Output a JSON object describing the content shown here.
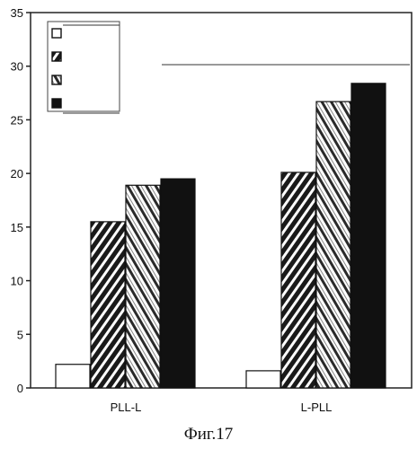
{
  "chart_data": {
    "type": "bar",
    "categories": [
      "PLL-L",
      "L-PLL"
    ],
    "series": [
      {
        "values": [
          2.2,
          1.6
        ],
        "fill": "white"
      },
      {
        "values": [
          15.5,
          20.1
        ],
        "fill": "stripe-dense"
      },
      {
        "values": [
          18.9,
          26.7
        ],
        "fill": "stripe-light"
      },
      {
        "values": [
          19.5,
          28.4
        ],
        "fill": "solid"
      }
    ],
    "yticks": [
      0,
      5,
      10,
      15,
      20,
      25,
      30,
      35
    ],
    "ylim": [
      0,
      35
    ],
    "grid": false,
    "legend": "top-left",
    "colors": {
      "ink": "#111111",
      "paper": "#ffffff"
    }
  },
  "caption": "Фиг.17"
}
